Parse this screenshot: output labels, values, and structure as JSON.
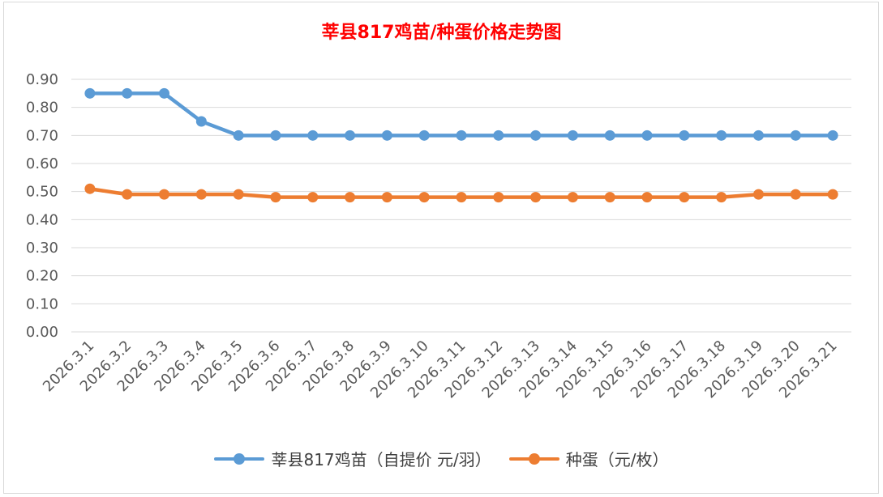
{
  "chart_data": {
    "type": "line",
    "title": "莘县817鸡苗/种蛋价格走势图",
    "xlabel": "",
    "ylabel": "",
    "ylim": [
      0,
      0.9
    ],
    "yticks": [
      "0.00",
      "0.10",
      "0.20",
      "0.30",
      "0.40",
      "0.50",
      "0.60",
      "0.70",
      "0.80",
      "0.90"
    ],
    "grid": true,
    "legend_position": "bottom",
    "categories": [
      "2026.3.1",
      "2026.3.2",
      "2026.3.3",
      "2026.3.4",
      "2026.3.5",
      "2026.3.6",
      "2026.3.7",
      "2026.3.8",
      "2026.3.9",
      "2026.3.10",
      "2026.3.11",
      "2026.3.12",
      "2026.3.13",
      "2026.3.14",
      "2026.3.15",
      "2026.3.16",
      "2026.3.17",
      "2026.3.18",
      "2026.3.19",
      "2026.3.20",
      "2026.3.21"
    ],
    "series": [
      {
        "name": "莘县817鸡苗（自提价 元/羽）",
        "color": "#5b9bd5",
        "values": [
          0.85,
          0.85,
          0.85,
          0.75,
          0.7,
          0.7,
          0.7,
          0.7,
          0.7,
          0.7,
          0.7,
          0.7,
          0.7,
          0.7,
          0.7,
          0.7,
          0.7,
          0.7,
          0.7,
          0.7,
          0.7
        ]
      },
      {
        "name": "种蛋（元/枚）",
        "color": "#ed7d31",
        "values": [
          0.51,
          0.49,
          0.49,
          0.49,
          0.49,
          0.48,
          0.48,
          0.48,
          0.48,
          0.48,
          0.48,
          0.48,
          0.48,
          0.48,
          0.48,
          0.48,
          0.48,
          0.48,
          0.49,
          0.49,
          0.49
        ]
      }
    ]
  }
}
